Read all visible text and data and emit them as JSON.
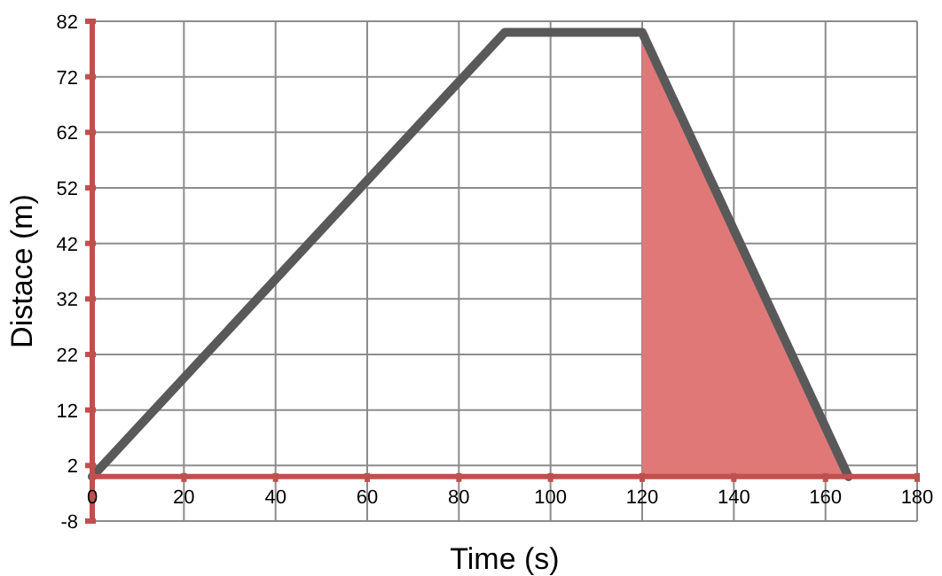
{
  "chart_data": {
    "type": "line",
    "xlabel": "Time (s)",
    "ylabel": "Distace (m)",
    "series": [
      {
        "type": "area",
        "color": "#e07878",
        "x": [
          120,
          165
        ],
        "values": [
          80,
          0
        ]
      },
      {
        "color": "#595959",
        "x": [
          0,
          90,
          120,
          165
        ],
        "values": [
          0,
          80,
          80,
          0
        ]
      }
    ],
    "xlim": [
      0,
      180
    ],
    "xticks": [
      0,
      20,
      40,
      60,
      80,
      100,
      120,
      140,
      160,
      180
    ],
    "ylim": [
      -8,
      82
    ],
    "yticks": [
      -8,
      2,
      12,
      22,
      32,
      42,
      52,
      62,
      72,
      82
    ],
    "grid": true,
    "marker": "none",
    "line_style": "solid"
  }
}
